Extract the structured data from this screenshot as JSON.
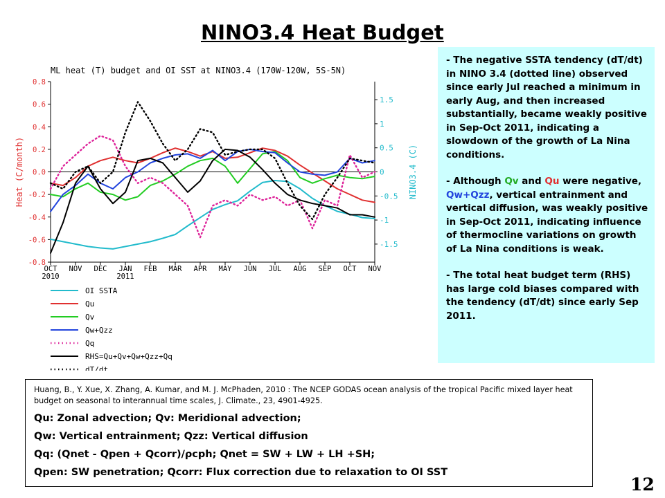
{
  "slide": {
    "title": "NINO3.4 Heat Budget",
    "page_number": "12"
  },
  "notes": {
    "p1": "- The negative SSTA tendency (dT/dt) in NINO 3.4 (dotted line) observed since early Jul reached a minimum in early Aug, and then increased substantially, became weakly positive in Sep-Oct 2011, indicating a slowdown of the growth of La Nina conditions.",
    "p2_before": "- Although ",
    "p2_qv": "Qv",
    "p2_and": " and ",
    "p2_qu": "Qu",
    "p2_were": " were negative, ",
    "p2_qwqzz": "Qw+Qzz",
    "p2_after": ", vertical entrainment and vertical diffusion, was weakly positive in Sep-Oct 2011, indicating influence of thermocline variations on growth of La Nina conditions is weak.",
    "p3": "- The total heat budget term (RHS) has large cold biases compared with the tendency (dT/dt) since early Sep 2011."
  },
  "reference": {
    "citation": "Huang, B., Y. Xue, X. Zhang, A. Kumar, and M. J. McPhaden, 2010 : The NCEP GODAS ocean analysis of the tropical Pacific mixed layer heat budget on seasonal to interannual time scales, J. Climate., 23, 4901-4925.",
    "definitions": [
      "Qu: Zonal advection;    Qv: Meridional advection;",
      "Qw: Vertical entrainment;  Qzz: Vertical diffusion",
      "Qq: (Qnet - Qpen + Qcorr)/ρcph;  Qnet = SW + LW + LH +SH;",
      "Qpen: SW penetration; Qcorr: Flux correction due to relaxation to OI SST"
    ]
  },
  "chart_data": {
    "type": "line",
    "title": "ML heat (T) budget and OI SST at NINO3.4 (170W-120W, 5S-5N)",
    "ylabel": "Heat (C/month)",
    "ylabel_right": "NINO3.4 (C)",
    "ylim": [
      -0.8,
      0.8
    ],
    "yticks": [
      "0.8",
      "0.6",
      "0.4",
      "0.2",
      "0.0",
      "-0.2",
      "-0.4",
      "-0.6",
      "-0.8"
    ],
    "ylim_right": [
      -1.875,
      1.875
    ],
    "yticks_right": [
      "1.5",
      "1",
      "0.5",
      "0",
      "-0.5",
      "-1",
      "-1.5"
    ],
    "x_months": [
      "OCT",
      "NOV",
      "DEC",
      "JAN",
      "FEB",
      "MAR",
      "APR",
      "MAY",
      "JUN",
      "JUL",
      "AUG",
      "SEP",
      "OCT",
      "NOV"
    ],
    "x_year_labels": {
      "OCT": "2010",
      "JAN": "2011"
    },
    "grid": false,
    "legend_position": "bottom-left, below plot",
    "series": [
      {
        "name": "OI SSTA",
        "color": "#22bbcc",
        "style": "solid",
        "axis": "right",
        "x": [
          0,
          0.5,
          1,
          1.5,
          2,
          2.5,
          3,
          3.5,
          4,
          4.5,
          5,
          5.5,
          6,
          6.5,
          7,
          7.5,
          8,
          8.5,
          9,
          9.5,
          10,
          10.5,
          11,
          11.5,
          12,
          12.5,
          13
        ],
        "y": [
          -1.4,
          -1.45,
          -1.5,
          -1.55,
          -1.58,
          -1.6,
          -1.55,
          -1.5,
          -1.45,
          -1.38,
          -1.3,
          -1.12,
          -0.95,
          -0.78,
          -0.68,
          -0.6,
          -0.4,
          -0.22,
          -0.18,
          -0.2,
          -0.35,
          -0.55,
          -0.7,
          -0.82,
          -0.88,
          -0.95,
          -0.97
        ]
      },
      {
        "name": "Qu",
        "color": "#e03030",
        "style": "solid",
        "axis": "left",
        "x": [
          0,
          0.5,
          1,
          1.5,
          2,
          2.5,
          3,
          3.5,
          4,
          4.5,
          5,
          5.5,
          6,
          6.5,
          7,
          7.5,
          8,
          8.5,
          9,
          9.5,
          10,
          10.5,
          11,
          11.5,
          12,
          12.5,
          13
        ],
        "y": [
          -0.1,
          -0.12,
          -0.05,
          0.05,
          0.1,
          0.13,
          0.1,
          0.08,
          0.12,
          0.17,
          0.21,
          0.18,
          0.14,
          0.18,
          0.12,
          0.13,
          0.17,
          0.21,
          0.19,
          0.14,
          0.06,
          -0.01,
          -0.08,
          -0.15,
          -0.2,
          -0.25,
          -0.27
        ]
      },
      {
        "name": "Qv",
        "color": "#22cc22",
        "style": "solid",
        "axis": "left",
        "x": [
          0,
          0.5,
          1,
          1.5,
          2,
          2.5,
          3,
          3.5,
          4,
          4.5,
          5,
          5.5,
          6,
          6.5,
          7,
          7.5,
          8,
          8.5,
          9,
          9.5,
          10,
          10.5,
          11,
          11.5,
          12,
          12.5,
          13
        ],
        "y": [
          -0.2,
          -0.22,
          -0.15,
          -0.1,
          -0.18,
          -0.2,
          -0.25,
          -0.22,
          -0.12,
          -0.08,
          -0.02,
          0.05,
          0.1,
          0.12,
          0.05,
          -0.1,
          0.03,
          0.16,
          0.18,
          0.1,
          -0.05,
          -0.1,
          -0.06,
          -0.03,
          -0.05,
          -0.06,
          -0.04
        ]
      },
      {
        "name": "Qw+Qzz",
        "color": "#2244dd",
        "style": "solid",
        "axis": "left",
        "x": [
          0,
          0.5,
          1,
          1.5,
          2,
          2.5,
          3,
          3.5,
          4,
          4.5,
          5,
          5.5,
          6,
          6.5,
          7,
          7.5,
          8,
          8.5,
          9,
          9.5,
          10,
          10.5,
          11,
          11.5,
          12,
          12.5,
          13
        ],
        "y": [
          -0.35,
          -0.2,
          -0.12,
          -0.02,
          -0.1,
          -0.15,
          -0.05,
          0.0,
          0.08,
          0.12,
          0.15,
          0.16,
          0.12,
          0.19,
          0.1,
          0.18,
          0.2,
          0.18,
          0.17,
          0.08,
          0.0,
          -0.02,
          -0.03,
          0.0,
          0.12,
          0.08,
          0.1
        ]
      },
      {
        "name": "Qq",
        "color": "#dd2299",
        "style": "dotted",
        "axis": "left",
        "x": [
          0,
          0.5,
          1,
          1.5,
          2,
          2.5,
          3,
          3.5,
          4,
          4.5,
          5,
          5.5,
          6,
          6.5,
          7,
          7.5,
          8,
          8.5,
          9,
          9.5,
          10,
          10.5,
          11,
          11.5,
          12,
          12.5,
          13
        ],
        "y": [
          -0.15,
          0.05,
          0.15,
          0.25,
          0.32,
          0.28,
          0.05,
          -0.1,
          -0.05,
          -0.1,
          -0.2,
          -0.3,
          -0.58,
          -0.3,
          -0.25,
          -0.3,
          -0.2,
          -0.25,
          -0.22,
          -0.3,
          -0.25,
          -0.5,
          -0.25,
          -0.3,
          0.15,
          -0.05,
          0.0
        ]
      },
      {
        "name": "RHS=Qu+Qv+Qw+Qzz+Qq",
        "color": "#000000",
        "style": "solid",
        "axis": "left",
        "x": [
          0,
          0.5,
          1,
          1.5,
          2,
          2.5,
          3,
          3.5,
          4,
          4.5,
          5,
          5.5,
          6,
          6.5,
          7,
          7.5,
          8,
          8.5,
          9,
          9.5,
          10,
          10.5,
          11,
          11.5,
          12,
          12.5,
          13
        ],
        "y": [
          -0.72,
          -0.45,
          -0.1,
          0.05,
          -0.15,
          -0.28,
          -0.18,
          0.1,
          0.12,
          0.08,
          -0.05,
          -0.18,
          -0.08,
          0.1,
          0.2,
          0.19,
          0.13,
          0.02,
          -0.1,
          -0.2,
          -0.25,
          -0.28,
          -0.3,
          -0.32,
          -0.38,
          -0.38,
          -0.4
        ]
      },
      {
        "name": "dT/dt",
        "color": "#000000",
        "style": "dotted",
        "axis": "left",
        "x": [
          0,
          0.5,
          1,
          1.5,
          2,
          2.5,
          3,
          3.5,
          4,
          4.5,
          5,
          5.5,
          6,
          6.5,
          7,
          7.5,
          8,
          8.5,
          9,
          9.5,
          10,
          10.5,
          11,
          11.5,
          12,
          12.5,
          13
        ],
        "y": [
          -0.1,
          -0.15,
          0.0,
          0.05,
          -0.1,
          0.0,
          0.35,
          0.62,
          0.45,
          0.25,
          0.1,
          0.2,
          0.38,
          0.35,
          0.15,
          0.18,
          0.2,
          0.2,
          0.12,
          -0.1,
          -0.3,
          -0.42,
          -0.2,
          -0.05,
          0.12,
          0.1,
          0.08
        ]
      }
    ]
  }
}
